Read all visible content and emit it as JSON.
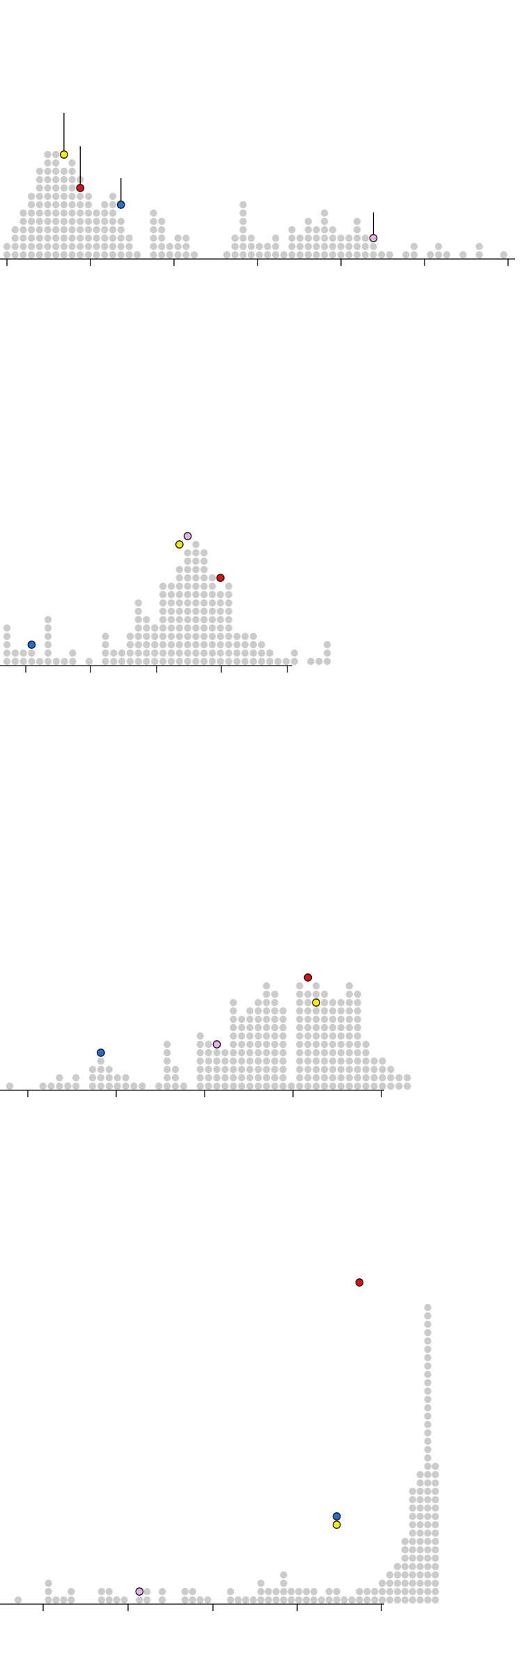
{
  "colors": {
    "base_dot": "#cccccc",
    "yellow": "#ffee00",
    "red": "#dd1111",
    "blue": "#1f6fd6",
    "pink": "#e8b0e8"
  },
  "chart_data": [
    {
      "type": "dotplot",
      "title": "",
      "xlabel": "",
      "ylabel": "",
      "counts": [
        2,
        4,
        6,
        8,
        11,
        13,
        13,
        11,
        12,
        10,
        8,
        6,
        7,
        8,
        5,
        3,
        1,
        0,
        6,
        5,
        2,
        3,
        3,
        1,
        0,
        0,
        0,
        1,
        3,
        7,
        3,
        2,
        2,
        3,
        1,
        4,
        3,
        5,
        4,
        6,
        4,
        3,
        3,
        5,
        3,
        2,
        1,
        1,
        0,
        1,
        2,
        0,
        1,
        2,
        1,
        0,
        1,
        0,
        2,
        0,
        0,
        1,
        0,
        0,
        0,
        0,
        0,
        0,
        0,
        0,
        1
      ],
      "highlights": [
        {
          "color": "yellow",
          "bin": 7,
          "level": 12,
          "stem": true
        },
        {
          "color": "red",
          "bin": 9,
          "level": 8,
          "stem": true
        },
        {
          "color": "blue",
          "bin": 14,
          "level": 6,
          "stem": true
        },
        {
          "color": "pink",
          "bin": 45,
          "level": 2,
          "stem": true
        }
      ],
      "ticks": 7
    },
    {
      "type": "dotplot",
      "title": "",
      "xlabel": "",
      "ylabel": "",
      "counts": [
        5,
        2,
        2,
        2,
        1,
        6,
        1,
        1,
        2,
        0,
        1,
        0,
        4,
        2,
        2,
        4,
        8,
        6,
        5,
        10,
        10,
        12,
        14,
        15,
        14,
        11,
        9,
        10,
        4,
        4,
        4,
        3,
        2,
        1,
        1,
        2,
        0,
        1,
        1,
        3
      ],
      "highlights": [
        {
          "color": "blue",
          "bin": 3,
          "level": 2,
          "stem": false
        },
        {
          "color": "yellow",
          "bin": 21,
          "level": 14,
          "stem": false
        },
        {
          "color": "pink",
          "bin": 22,
          "level": 15,
          "stem": false
        },
        {
          "color": "red",
          "bin": 26,
          "level": 10,
          "stem": false
        }
      ],
      "ticks": 5
    },
    {
      "type": "dotplot",
      "title": "",
      "xlabel": "",
      "ylabel": "",
      "counts": [
        1,
        0,
        0,
        0,
        1,
        1,
        2,
        1,
        2,
        0,
        3,
        5,
        3,
        2,
        2,
        1,
        1,
        0,
        1,
        6,
        3,
        1,
        0,
        7,
        6,
        5,
        5,
        11,
        9,
        10,
        11,
        13,
        12,
        10,
        1,
        13,
        12,
        13,
        12,
        11,
        11,
        13,
        12,
        6,
        4,
        4,
        3,
        2,
        2
      ],
      "highlights": [
        {
          "color": "blue",
          "bin": 11,
          "level": 4,
          "stem": false
        },
        {
          "color": "pink",
          "bin": 25,
          "level": 5,
          "stem": false
        },
        {
          "color": "red",
          "bin": 36,
          "level": 13,
          "stem": false
        },
        {
          "color": "yellow",
          "bin": 37,
          "level": 10,
          "stem": false
        }
      ],
      "ticks": 5
    },
    {
      "type": "dotplot",
      "title": "",
      "xlabel": "",
      "ylabel": "",
      "counts": [
        1,
        0,
        0,
        0,
        3,
        1,
        1,
        2,
        0,
        0,
        0,
        2,
        2,
        1,
        1,
        0,
        1,
        2,
        0,
        2,
        0,
        0,
        2,
        2,
        1,
        1,
        0,
        0,
        2,
        1,
        1,
        1,
        3,
        2,
        2,
        4,
        2,
        2,
        2,
        2,
        1,
        2,
        2,
        1,
        1,
        2,
        2,
        2,
        3,
        4,
        5,
        8,
        14,
        16,
        36,
        17
      ],
      "highlights": [
        {
          "color": "pink",
          "bin": 16,
          "level": 1,
          "stem": false
        },
        {
          "color": "blue",
          "bin": 42,
          "level": 10,
          "stem": false
        },
        {
          "color": "yellow",
          "bin": 42,
          "level": 9,
          "stem": false
        },
        {
          "color": "red",
          "bin": 45,
          "level": 38,
          "stem": false
        }
      ],
      "ticks": 5
    }
  ]
}
